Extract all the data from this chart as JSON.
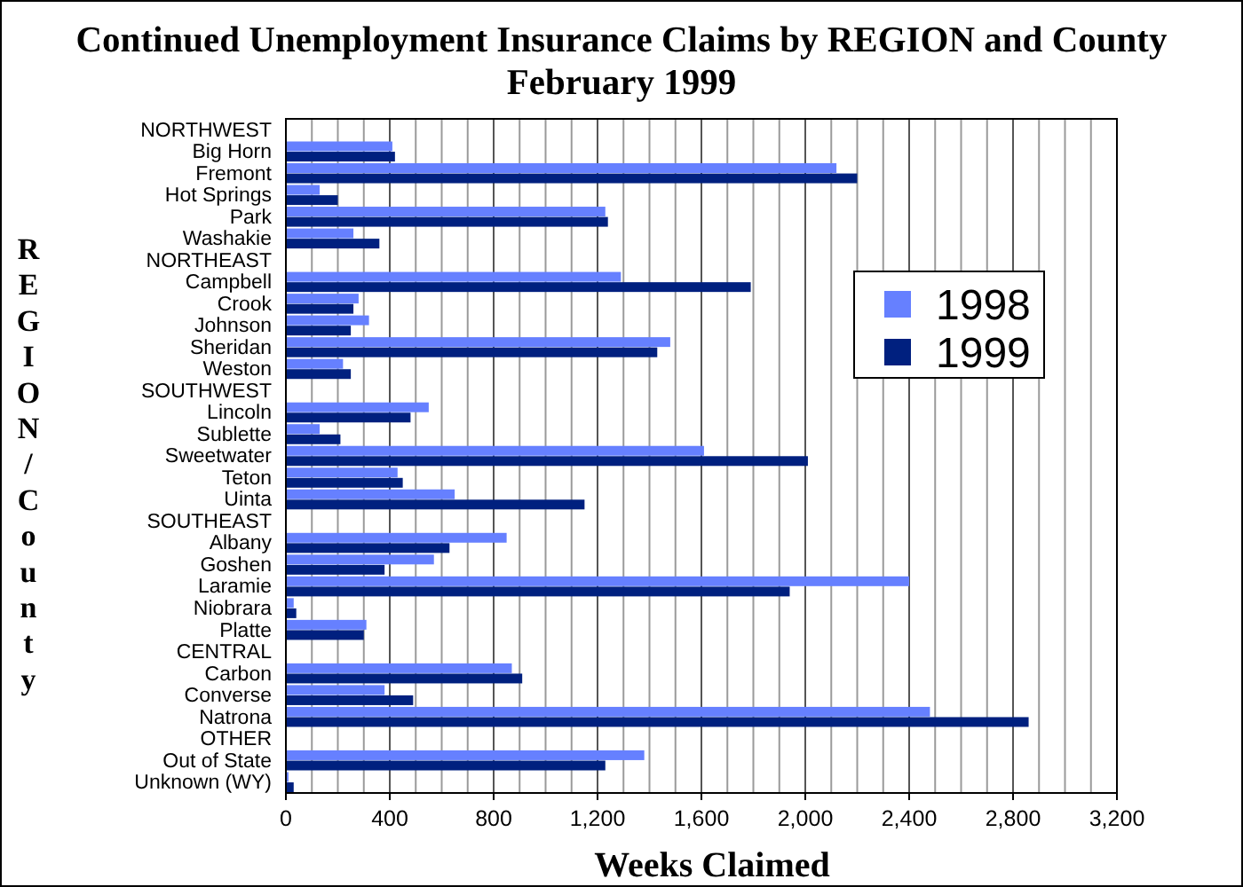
{
  "chart_data": {
    "type": "bar",
    "orientation": "horizontal",
    "title": "Continued Unemployment Insurance Claims by REGION and County",
    "subtitle": "February 1999",
    "xlabel": "Weeks Claimed",
    "ylabel": "REGION/County",
    "categories": [
      "NORTHWEST",
      "Big Horn",
      "Fremont",
      "Hot Springs",
      "Park",
      "Washakie",
      "NORTHEAST",
      "Campbell",
      "Crook",
      "Johnson",
      "Sheridan",
      "Weston",
      "SOUTHWEST",
      "Lincoln",
      "Sublette",
      "Sweetwater",
      "Teton",
      "Uinta",
      "SOUTHEAST",
      "Albany",
      "Goshen",
      "Laramie",
      "Niobrara",
      "Platte",
      "CENTRAL",
      "Carbon",
      "Converse",
      "Natrona",
      "OTHER",
      "Out of State",
      "Unknown (WY)"
    ],
    "series": [
      {
        "name": "1998",
        "color": "#6680ff",
        "values": [
          null,
          410,
          2120,
          130,
          1230,
          260,
          null,
          1290,
          280,
          320,
          1480,
          220,
          null,
          550,
          130,
          1610,
          430,
          650,
          null,
          850,
          570,
          2400,
          30,
          310,
          null,
          870,
          380,
          2480,
          null,
          1380,
          10
        ]
      },
      {
        "name": "1999",
        "color": "#00207f",
        "values": [
          null,
          420,
          2200,
          200,
          1240,
          360,
          null,
          1790,
          260,
          250,
          1430,
          250,
          null,
          480,
          210,
          2010,
          450,
          1150,
          null,
          630,
          380,
          1940,
          40,
          300,
          null,
          910,
          490,
          2860,
          null,
          1230,
          30
        ]
      }
    ],
    "xlim": [
      0,
      3200
    ],
    "xticks": [
      0,
      {
        "value": 100,
        "label": null
      },
      {
        "value": 200,
        "label": null
      },
      {
        "value": 300,
        "label": null
      },
      400,
      {
        "value": 500,
        "label": null
      },
      {
        "value": 600,
        "label": null
      },
      {
        "value": 700,
        "label": null
      },
      800,
      {
        "value": 900,
        "label": null
      },
      {
        "value": 1000,
        "label": null
      },
      {
        "value": 1100,
        "label": null
      },
      {
        "value": 1200,
        "label": "1,200"
      },
      {
        "value": 1300,
        "label": null
      },
      {
        "value": 1400,
        "label": null
      },
      {
        "value": 1500,
        "label": null
      },
      {
        "value": 1600,
        "label": "1,600"
      },
      {
        "value": 1700,
        "label": null
      },
      {
        "value": 1800,
        "label": null
      },
      {
        "value": 1900,
        "label": null
      },
      {
        "value": 2000,
        "label": "2,000"
      },
      {
        "value": 2100,
        "label": null
      },
      {
        "value": 2200,
        "label": null
      },
      {
        "value": 2300,
        "label": null
      },
      {
        "value": 2400,
        "label": "2,400"
      },
      {
        "value": 2500,
        "label": null
      },
      {
        "value": 2600,
        "label": null
      },
      {
        "value": 2700,
        "label": null
      },
      {
        "value": 2800,
        "label": "2,800"
      },
      {
        "value": 2900,
        "label": null
      },
      {
        "value": 3000,
        "label": null
      },
      {
        "value": 3100,
        "label": null
      },
      {
        "value": 3200,
        "label": "3,200"
      }
    ],
    "grid": "x",
    "legend": "right"
  }
}
